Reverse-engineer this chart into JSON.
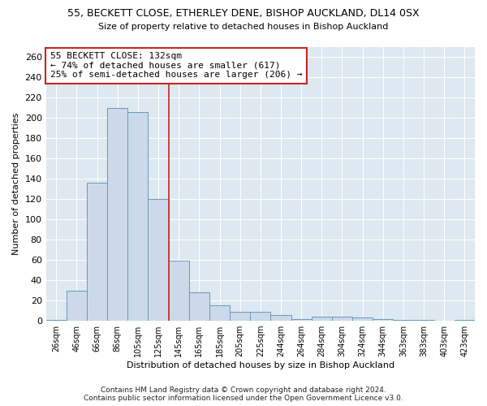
{
  "title_line1": "55, BECKETT CLOSE, ETHERLEY DENE, BISHOP AUCKLAND, DL14 0SX",
  "title_line2": "Size of property relative to detached houses in Bishop Auckland",
  "xlabel": "Distribution of detached houses by size in Bishop Auckland",
  "ylabel": "Number of detached properties",
  "categories": [
    "26sqm",
    "46sqm",
    "66sqm",
    "86sqm",
    "105sqm",
    "125sqm",
    "145sqm",
    "165sqm",
    "185sqm",
    "205sqm",
    "225sqm",
    "244sqm",
    "264sqm",
    "284sqm",
    "304sqm",
    "324sqm",
    "344sqm",
    "363sqm",
    "383sqm",
    "403sqm",
    "423sqm"
  ],
  "values": [
    1,
    30,
    136,
    210,
    206,
    120,
    59,
    28,
    15,
    9,
    9,
    6,
    2,
    4,
    4,
    3,
    2,
    1,
    1,
    0,
    1
  ],
  "bar_color": "#ccd9ea",
  "bar_edge_color": "#6699bb",
  "vline_x": 5.5,
  "vline_color": "#cc2222",
  "annotation_text": "55 BECKETT CLOSE: 132sqm\n← 74% of detached houses are smaller (617)\n25% of semi-detached houses are larger (206) →",
  "annotation_box_color": "#ffffff",
  "annotation_box_edge": "#cc2222",
  "ylim": [
    0,
    270
  ],
  "yticks": [
    0,
    20,
    40,
    60,
    80,
    100,
    120,
    140,
    160,
    180,
    200,
    220,
    240,
    260
  ],
  "bg_color": "#dde8f0",
  "grid_color": "#ffffff",
  "footer_line1": "Contains HM Land Registry data © Crown copyright and database right 2024.",
  "footer_line2": "Contains public sector information licensed under the Open Government Licence v3.0."
}
